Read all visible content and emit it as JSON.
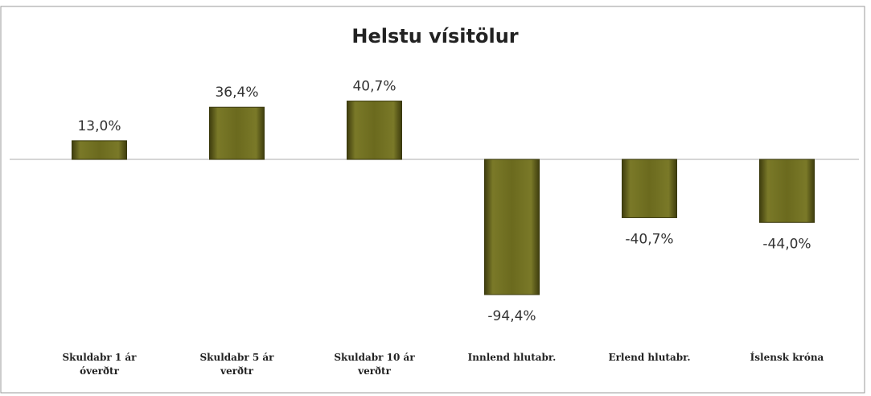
{
  "chart_data": {
    "type": "bar",
    "title": "Helstu vísitölur",
    "categories": [
      "Skuldabr 1 ár óverðtr",
      "Skuldabr 5 ár verðtr",
      "Skuldabr 10 ár verðtr",
      "Innlend hlutabr.",
      "Erlend hlutabr.",
      "Íslensk króna"
    ],
    "values": [
      13.0,
      36.4,
      40.7,
      -94.4,
      -40.7,
      -44.0
    ],
    "value_labels": [
      "13,0%",
      "36,4%",
      "40,7%",
      "-94,4%",
      "-40,7%",
      "-44,0%"
    ],
    "color": "#6b6a1e",
    "ylim": [
      -100,
      50
    ]
  }
}
